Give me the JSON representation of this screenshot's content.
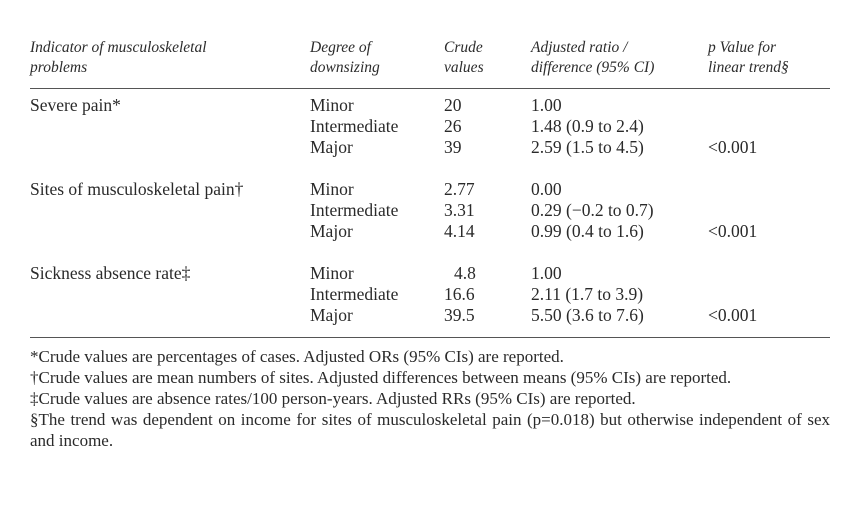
{
  "table": {
    "headers": {
      "indicator": "Indicator of musculoskeletal\nproblems",
      "degree": "Degree of\ndownsizing",
      "crude": "Crude\nvalues",
      "adjusted": "Adjusted ratio /\ndifference (95% CI)",
      "p_value": "p Value for\nlinear trend§"
    },
    "groups": [
      {
        "indicator": "Severe pain*",
        "rows": [
          {
            "degree": "Minor",
            "crude": "20",
            "adjusted": "1.00",
            "p": ""
          },
          {
            "degree": "Intermediate",
            "crude": "26",
            "adjusted": "1.48 (0.9 to 2.4)",
            "p": ""
          },
          {
            "degree": "Major",
            "crude": "39",
            "adjusted": "2.59 (1.5 to 4.5)",
            "p": "<0.001"
          }
        ]
      },
      {
        "indicator": "Sites of musculoskeletal pain†",
        "rows": [
          {
            "degree": "Minor",
            "crude": "2.77",
            "adjusted": "0.00",
            "p": ""
          },
          {
            "degree": "Intermediate",
            "crude": "3.31",
            "adjusted": "0.29 (−0.2 to 0.7)",
            "p": ""
          },
          {
            "degree": "Major",
            "crude": "4.14",
            "adjusted": "0.99 (0.4 to 1.6)",
            "p": "<0.001"
          }
        ]
      },
      {
        "indicator": "Sickness absence rate‡",
        "rows": [
          {
            "degree": "Minor",
            "crude": "4.8",
            "adjusted": "1.00",
            "p": ""
          },
          {
            "degree": "Intermediate",
            "crude": "16.6",
            "adjusted": "2.11 (1.7 to 3.9)",
            "p": ""
          },
          {
            "degree": "Major",
            "crude": "39.5",
            "adjusted": "5.50 (3.6 to 7.6)",
            "p": "<0.001"
          }
        ]
      }
    ]
  },
  "footnotes": [
    "*Crude values are percentages of cases. Adjusted ORs (95% CIs) are reported.",
    "†Crude values are mean numbers of sites. Adjusted differences between means (95% CIs) are reported.",
    "‡Crude values are absence rates/100 person-years. Adjusted RRs (95% CIs) are reported.",
    "§The trend was dependent on income for sites of musculoskeletal pain (p=0.018) but otherwise independent of sex and income."
  ]
}
